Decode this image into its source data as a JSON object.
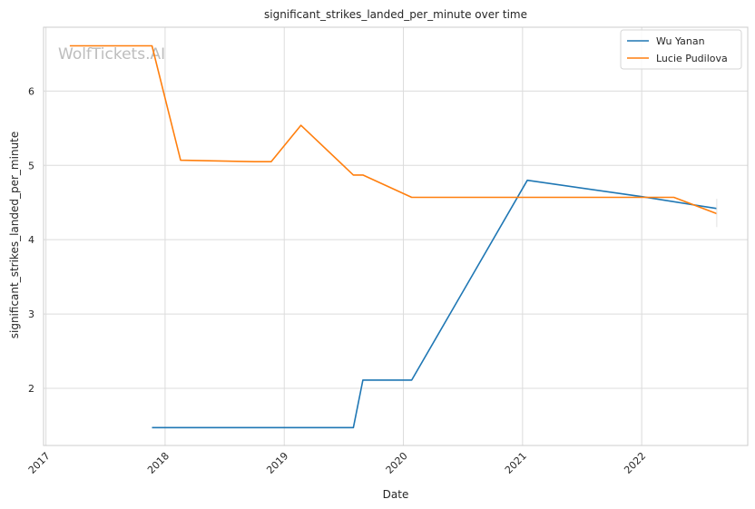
{
  "chart_data": {
    "type": "line",
    "title": "significant_strikes_landed_per_minute over time",
    "xlabel": "Date",
    "ylabel": "significant_strikes_landed_per_minute",
    "watermark": "WolfTickets.AI",
    "x_ticks": [
      "2017",
      "2018",
      "2019",
      "2020",
      "2021",
      "2022"
    ],
    "y_ticks": [
      "2",
      "3",
      "4",
      "5",
      "6"
    ],
    "xlim": [
      2016.98,
      2022.89
    ],
    "ylim": [
      1.23,
      6.86
    ],
    "grid": true,
    "legend_position": "top-right",
    "series": [
      {
        "name": "Wu Yanan",
        "color": "#1f77b4",
        "points": [
          [
            2017.89,
            1.47
          ],
          [
            2019.58,
            1.47
          ],
          [
            2019.66,
            2.11
          ],
          [
            2020.07,
            2.11
          ],
          [
            2021.04,
            4.8
          ],
          [
            2022.0,
            4.58
          ],
          [
            2022.63,
            4.42
          ]
        ]
      },
      {
        "name": "Lucie Pudilova",
        "color": "#ff7f0e",
        "points": [
          [
            2017.2,
            6.61
          ],
          [
            2017.89,
            6.61
          ],
          [
            2018.13,
            5.07
          ],
          [
            2018.75,
            5.05
          ],
          [
            2018.89,
            5.05
          ],
          [
            2019.14,
            5.54
          ],
          [
            2019.58,
            4.87
          ],
          [
            2019.66,
            4.87
          ],
          [
            2020.07,
            4.57
          ],
          [
            2022.27,
            4.57
          ],
          [
            2022.63,
            4.35
          ]
        ]
      }
    ]
  }
}
